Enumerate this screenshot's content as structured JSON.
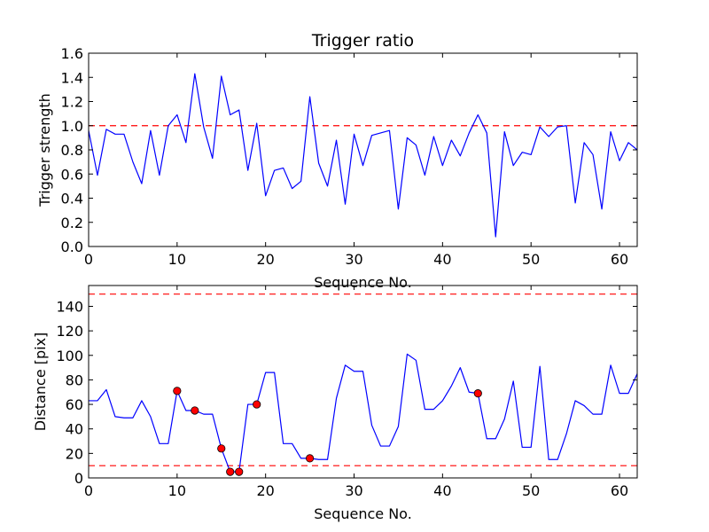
{
  "chart_data": [
    {
      "type": "line",
      "title": "Trigger ratio",
      "xlabel": "Sequence No.",
      "ylabel": "Trigger strength",
      "xlim": [
        0,
        62
      ],
      "ylim": [
        0,
        1.6
      ],
      "xticks": [
        0,
        10,
        20,
        30,
        40,
        50,
        60
      ],
      "yticks": [
        0.0,
        0.2,
        0.4,
        0.6,
        0.8,
        1.0,
        1.2,
        1.4,
        1.6
      ],
      "ytick_labels": [
        "0.0",
        "0.2",
        "0.4",
        "0.6",
        "0.8",
        "1.0",
        "1.2",
        "1.4",
        "1.6"
      ],
      "series": [
        {
          "name": "trigger strength",
          "color": "#0000ff",
          "x": [
            0,
            1,
            2,
            3,
            4,
            5,
            6,
            7,
            8,
            9,
            10,
            11,
            12,
            13,
            14,
            15,
            16,
            17,
            18,
            19,
            20,
            21,
            22,
            23,
            24,
            25,
            26,
            27,
            28,
            29,
            30,
            31,
            32,
            33,
            34,
            35,
            36,
            37,
            38,
            39,
            40,
            41,
            42,
            43,
            44,
            45,
            46,
            47,
            48,
            49,
            50,
            51,
            52,
            53,
            54,
            55,
            56,
            57,
            58,
            59,
            60,
            61,
            62
          ],
          "values": [
            0.96,
            0.59,
            0.97,
            0.93,
            0.93,
            0.7,
            0.52,
            0.96,
            0.59,
            1.0,
            1.09,
            0.86,
            1.43,
            0.99,
            0.73,
            1.41,
            1.09,
            1.13,
            0.63,
            1.02,
            0.42,
            0.63,
            0.65,
            0.48,
            0.54,
            1.24,
            0.69,
            0.5,
            0.88,
            0.35,
            0.93,
            0.67,
            0.92,
            0.94,
            0.96,
            0.31,
            0.9,
            0.84,
            0.59,
            0.91,
            0.67,
            0.88,
            0.75,
            0.94,
            1.09,
            0.94,
            0.08,
            0.95,
            0.67,
            0.78,
            0.76,
            0.99,
            0.91,
            0.99,
            1.0,
            0.36,
            0.86,
            0.76,
            0.31,
            0.95,
            0.71,
            0.86,
            0.8
          ]
        }
      ],
      "hlines": [
        {
          "y": 1.0,
          "color": "#ff0000",
          "style": "dashed"
        }
      ]
    },
    {
      "type": "line",
      "title": "",
      "xlabel": "Sequence No.",
      "ylabel": "Distance [pix]",
      "xlim": [
        0,
        62
      ],
      "ylim": [
        0,
        157
      ],
      "xticks": [
        0,
        10,
        20,
        30,
        40,
        50,
        60
      ],
      "yticks": [
        0,
        20,
        40,
        60,
        80,
        100,
        120,
        140
      ],
      "ytick_labels": [
        "0",
        "20",
        "40",
        "60",
        "80",
        "100",
        "120",
        "140"
      ],
      "series": [
        {
          "name": "distance",
          "color": "#0000ff",
          "x": [
            0,
            1,
            2,
            3,
            4,
            5,
            6,
            7,
            8,
            9,
            10,
            11,
            12,
            13,
            14,
            15,
            16,
            17,
            18,
            19,
            20,
            21,
            22,
            23,
            24,
            25,
            26,
            27,
            28,
            29,
            30,
            31,
            32,
            33,
            34,
            35,
            36,
            37,
            38,
            39,
            40,
            41,
            42,
            43,
            44,
            45,
            46,
            47,
            48,
            49,
            50,
            51,
            52,
            53,
            54,
            55,
            56,
            57,
            58,
            59,
            60,
            61,
            62
          ],
          "values": [
            63,
            63,
            72,
            50,
            49,
            49,
            63,
            50,
            28,
            28,
            71,
            55,
            55,
            52,
            52,
            24,
            5,
            5,
            60,
            60,
            86,
            86,
            28,
            28,
            16,
            16,
            15,
            15,
            65,
            92,
            87,
            87,
            43,
            26,
            26,
            42,
            101,
            96,
            56,
            56,
            63,
            75,
            90,
            70,
            69,
            32,
            32,
            48,
            79,
            25,
            25,
            91,
            15,
            15,
            36,
            63,
            59,
            52,
            52,
            92,
            69,
            69,
            85
          ]
        },
        {
          "name": "highlighted points",
          "color": "#ff0000",
          "marker": "circle",
          "x": [
            10,
            12,
            15,
            16,
            17,
            19,
            25,
            44
          ],
          "values": [
            71,
            55,
            24,
            5,
            5,
            60,
            16,
            69
          ]
        }
      ],
      "hlines": [
        {
          "y": 150,
          "color": "#ff0000",
          "style": "dashed"
        },
        {
          "y": 10,
          "color": "#ff0000",
          "style": "dashed"
        }
      ]
    }
  ]
}
